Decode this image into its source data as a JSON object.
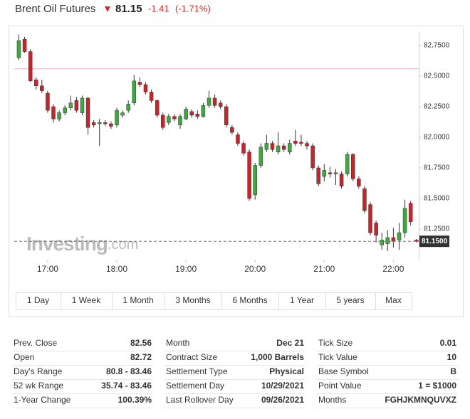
{
  "header": {
    "title": "Brent Oil Futures",
    "price": "81.15",
    "change": "-1.41",
    "change_pct": "(-1.71%)"
  },
  "chart_data": {
    "type": "candlestick",
    "x": [
      995,
      1000,
      1005,
      1010,
      1015,
      1020,
      1025,
      1030,
      1035,
      1040,
      1045,
      1050,
      1055,
      1060,
      1065,
      1070,
      1075,
      1080,
      1085,
      1090,
      1095,
      1100,
      1105,
      1110,
      1115,
      1120,
      1125,
      1130,
      1135,
      1140,
      1145,
      1150,
      1155,
      1160,
      1165,
      1170,
      1175,
      1180,
      1185,
      1190,
      1195,
      1200,
      1205,
      1210,
      1215,
      1220,
      1225,
      1230,
      1235,
      1240,
      1245,
      1250,
      1255,
      1260,
      1265,
      1270,
      1275,
      1280,
      1285,
      1290,
      1295,
      1300,
      1305,
      1310,
      1315,
      1320,
      1325,
      1330,
      1335,
      1340
    ],
    "open": [
      82.65,
      82.8,
      82.7,
      82.47,
      82.42,
      82.36,
      82.25,
      82.15,
      82.2,
      82.24,
      82.3,
      82.2,
      82.32,
      82.12,
      82.11,
      82.12,
      82.11,
      82.1,
      82.18,
      82.22,
      82.28,
      82.45,
      82.43,
      82.37,
      82.3,
      82.18,
      82.12,
      82.17,
      82.1,
      82.15,
      82.21,
      82.19,
      82.17,
      82.26,
      82.32,
      82.28,
      82.25,
      82.08,
      82.02,
      81.95,
      81.88,
      81.53,
      81.77,
      81.9,
      81.95,
      81.88,
      81.93,
      81.88,
      81.97,
      81.96,
      81.95,
      81.93,
      81.75,
      81.68,
      81.71,
      81.7,
      81.7,
      81.7,
      81.86,
      81.66,
      81.58,
      81.45,
      81.3,
      81.12,
      81.13,
      81.18,
      81.16,
      81.22,
      81.46,
      81.16
    ],
    "high": [
      82.84,
      82.82,
      82.72,
      82.49,
      82.47,
      82.38,
      82.27,
      82.22,
      82.26,
      82.34,
      82.33,
      82.34,
      82.33,
      82.14,
      82.15,
      82.14,
      82.13,
      82.24,
      82.22,
      82.3,
      82.51,
      82.49,
      82.45,
      82.39,
      82.31,
      82.2,
      82.19,
      82.19,
      82.19,
      82.25,
      82.23,
      82.22,
      82.28,
      82.38,
      82.35,
      82.3,
      82.27,
      82.1,
      82.04,
      81.97,
      81.9,
      81.79,
      81.95,
      82.02,
      81.97,
      82.04,
      81.95,
      81.98,
      82.06,
      82.02,
      81.97,
      81.95,
      81.77,
      81.78,
      81.76,
      81.74,
      81.72,
      81.88,
      81.87,
      81.68,
      81.6,
      81.47,
      81.32,
      81.22,
      81.24,
      81.26,
      81.3,
      81.49,
      81.48,
      81.17
    ],
    "low": [
      82.63,
      82.69,
      82.45,
      82.39,
      82.36,
      82.2,
      82.12,
      82.13,
      82.18,
      82.22,
      82.2,
      82.18,
      82.02,
      82.08,
      81.93,
      82.09,
      82.07,
      82.08,
      82.16,
      82.2,
      82.26,
      82.41,
      82.35,
      82.28,
      82.16,
      82.06,
      82.1,
      82.13,
      82.07,
      82.14,
      82.16,
      82.15,
      82.16,
      82.24,
      82.24,
      82.23,
      82.08,
      82.02,
      81.93,
      81.85,
      81.48,
      81.49,
      81.75,
      81.88,
      81.88,
      81.86,
      81.88,
      81.86,
      81.93,
      81.93,
      81.9,
      81.73,
      81.6,
      81.64,
      81.67,
      81.61,
      81.58,
      81.68,
      81.64,
      81.58,
      81.38,
      81.2,
      81.14,
      81.08,
      81.07,
      81.1,
      81.08,
      81.18,
      81.28,
      81.14
    ],
    "close": [
      82.79,
      82.7,
      82.46,
      82.42,
      82.38,
      82.22,
      82.15,
      82.2,
      82.24,
      82.28,
      82.22,
      82.32,
      82.08,
      82.1,
      82.12,
      82.11,
      82.09,
      82.22,
      82.2,
      82.27,
      82.46,
      82.43,
      82.37,
      82.3,
      82.18,
      82.08,
      82.17,
      82.15,
      82.17,
      82.23,
      82.18,
      82.17,
      82.26,
      82.32,
      82.26,
      82.25,
      82.1,
      82.04,
      81.95,
      81.87,
      81.5,
      81.77,
      81.92,
      81.95,
      81.9,
      81.93,
      81.9,
      81.95,
      81.95,
      81.95,
      81.93,
      81.75,
      81.62,
      81.73,
      81.7,
      81.71,
      81.6,
      81.86,
      81.66,
      81.6,
      81.4,
      81.22,
      81.2,
      81.16,
      81.18,
      81.15,
      81.22,
      81.42,
      81.31,
      81.15
    ],
    "up_color": "#3fa83f",
    "down_color": "#c4262e",
    "xlim": [
      991,
      1342
    ],
    "xticks": [
      {
        "value": 1020,
        "label": "17:00"
      },
      {
        "value": 1080,
        "label": "18:00"
      },
      {
        "value": 1140,
        "label": "19:00"
      },
      {
        "value": 1200,
        "label": "20:00"
      },
      {
        "value": 1260,
        "label": "21:00"
      },
      {
        "value": 1320,
        "label": "22:00"
      }
    ],
    "ylim": [
      81.0,
      82.86
    ],
    "yticks": [
      {
        "value": 81.25,
        "label": "81.2500"
      },
      {
        "value": 81.5,
        "label": "81.5000"
      },
      {
        "value": 81.75,
        "label": "81.7500"
      },
      {
        "value": 82.0,
        "label": "82.0000"
      },
      {
        "value": 82.25,
        "label": "82.2500"
      },
      {
        "value": 82.5,
        "label": "82.5000"
      },
      {
        "value": 82.75,
        "label": "82.7500"
      }
    ],
    "prev_close_line": 82.56,
    "last_price": {
      "value": 81.15,
      "label": "81.1500"
    },
    "watermark": [
      "Investing",
      ".com"
    ]
  },
  "ranges": [
    "1 Day",
    "1 Week",
    "1 Month",
    "3 Months",
    "6 Months",
    "1 Year",
    "5 years",
    "Max"
  ],
  "stats": [
    [
      [
        "Prev. Close",
        "82.56"
      ],
      [
        "Open",
        "82.72"
      ],
      [
        "Day's Range",
        "80.8 - 83.46"
      ],
      [
        "52 wk Range",
        "35.74 - 83.46"
      ],
      [
        "1-Year Change",
        "100.39%"
      ]
    ],
    [
      [
        "Month",
        "Dec 21"
      ],
      [
        "Contract Size",
        "1,000 Barrels"
      ],
      [
        "Settlement Type",
        "Physical"
      ],
      [
        "Settlement Day",
        "10/29/2021"
      ],
      [
        "Last Rollover Day",
        "09/26/2021"
      ]
    ],
    [
      [
        "Tick Size",
        "0.01"
      ],
      [
        "Tick Value",
        "10"
      ],
      [
        "Base Symbol",
        "B"
      ],
      [
        "Point Value",
        "1 = $1000"
      ],
      [
        "Months",
        "FGHJKMNQUVXZ"
      ]
    ]
  ]
}
